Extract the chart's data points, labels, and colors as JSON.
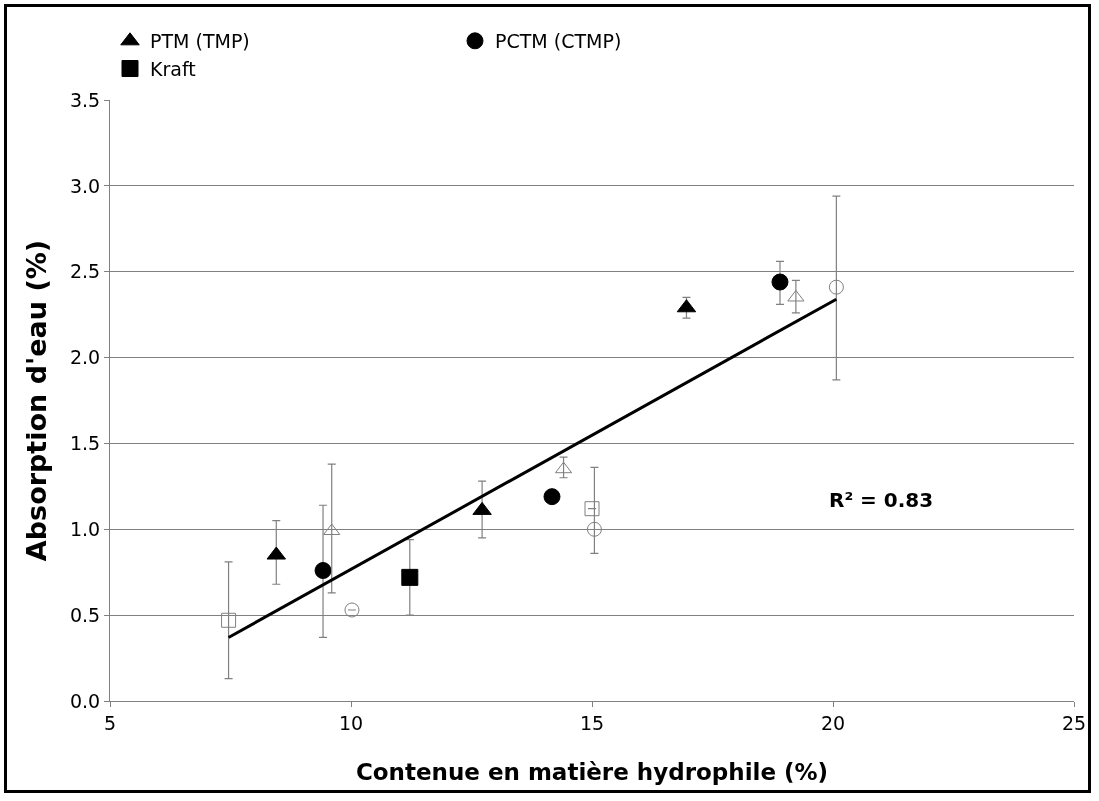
{
  "chart_data": {
    "type": "scatter",
    "xlabel": "Contenue en matière hydrophile (%)",
    "ylabel": "Absorption d'eau (%)",
    "xlim": [
      5,
      25
    ],
    "xticks": [
      5,
      10,
      15,
      20,
      25
    ],
    "ylim": [
      0,
      3.5
    ],
    "yticks": [
      {
        "value": 0,
        "label": "0.0"
      },
      {
        "value": 0.5,
        "label": "0.5"
      },
      {
        "value": 1,
        "label": "1.0"
      },
      {
        "value": 1.5,
        "label": "1.5"
      },
      {
        "value": 2,
        "label": "2.0"
      },
      {
        "value": 2.5,
        "label": "2.5"
      },
      {
        "value": 3,
        "label": "3.0"
      },
      {
        "value": 3.5,
        "label": "3.5"
      }
    ],
    "grid": "y",
    "legend": "top",
    "annotations": [
      "R² = 0.83"
    ],
    "series": [
      {
        "name": "PTM (TMP)",
        "color": "#000000",
        "marker": "triangle",
        "x": [
          8.45,
          12.72,
          16.96
        ],
        "values": [
          0.85,
          1.11,
          2.29
        ],
        "errors": [
          [
            0.68,
            1.05
          ],
          [
            0.95,
            1.28
          ],
          [
            2.23,
            2.35
          ]
        ]
      },
      {
        "name": "PCTM (CTMP)",
        "color": "#000000",
        "marker": "circle",
        "x": [
          9.42,
          14.17,
          18.9
        ],
        "values": [
          0.76,
          1.19,
          2.44
        ],
        "errors": [
          [
            0.37,
            1.14
          ],
          null,
          [
            2.31,
            2.56
          ]
        ]
      },
      {
        "name": "Kraft",
        "color": "#000000",
        "marker": "square",
        "x": [
          11.22
        ],
        "values": [
          0.72
        ],
        "errors": [
          [
            0.5,
            0.94
          ]
        ]
      },
      {
        "color": "#808080",
        "marker": "triangle",
        "x": [
          9.6,
          14.41,
          19.23
        ],
        "values": [
          0.99,
          1.35,
          2.35
        ],
        "errors": [
          [
            0.63,
            1.38
          ],
          [
            1.3,
            1.42
          ],
          [
            2.26,
            2.45
          ]
        ]
      },
      {
        "color": "#808080",
        "marker": "circle",
        "x": [
          10.02,
          15.05,
          20.07
        ],
        "values": [
          0.53,
          1.0,
          2.41
        ],
        "errors": [
          null,
          [
            0.86,
            1.36
          ],
          [
            1.87,
            2.94
          ]
        ]
      },
      {
        "color": "#808080",
        "marker": "square",
        "x": [
          7.46,
          15.0
        ],
        "values": [
          0.47,
          1.12
        ],
        "errors": [
          [
            0.13,
            0.81
          ],
          null
        ]
      },
      {
        "type": "line",
        "color": "#000000",
        "marker": "none",
        "line_style": "solid",
        "x": [
          7.46,
          20.07
        ],
        "values": [
          0.37,
          2.34
        ]
      }
    ]
  }
}
